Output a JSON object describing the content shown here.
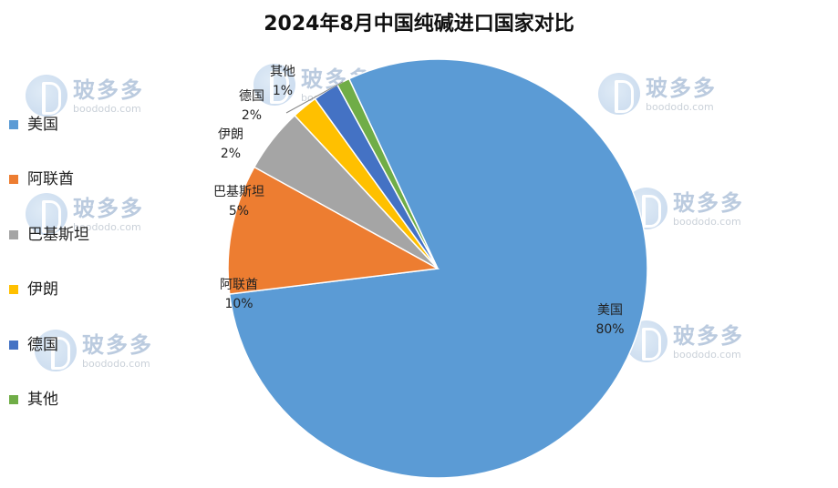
{
  "chart_data": {
    "type": "pie",
    "title": "2024年8月中国纯碱进口国家对比",
    "categories": [
      "美国",
      "阿联酋",
      "巴基斯坦",
      "伊朗",
      "德国",
      "其他"
    ],
    "values": [
      80,
      10,
      5,
      2,
      2,
      1
    ],
    "data_labels": [
      "80%",
      "10%",
      "5%",
      "2%",
      "2%",
      "1%"
    ],
    "colors": [
      "#5B9BD5",
      "#ED7D31",
      "#A5A5A5",
      "#FFC000",
      "#4472C4",
      "#70AD47"
    ],
    "legend_position": "left"
  },
  "watermark": {
    "text_cn": "玻多多",
    "text_en": "boododo.com",
    "icon": "boododo-logo-icon"
  }
}
